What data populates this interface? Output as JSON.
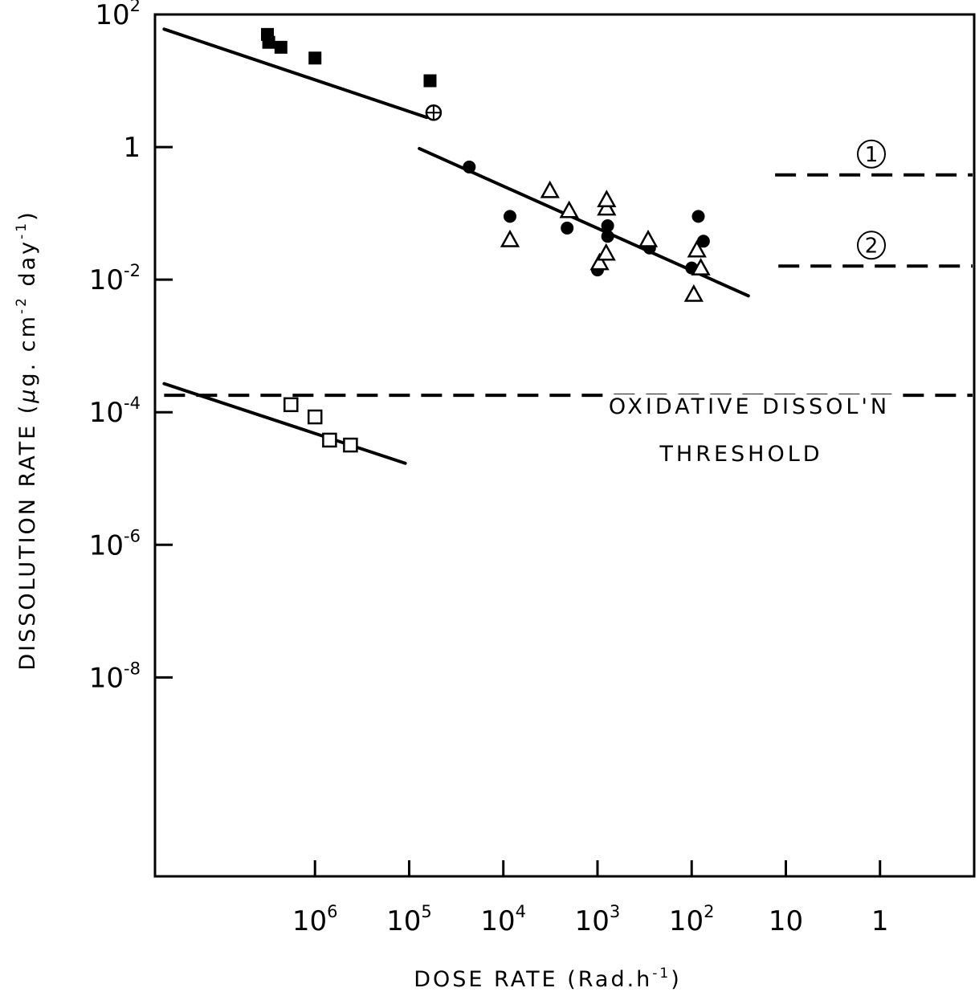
{
  "chart_data": {
    "type": "scatter",
    "title": "",
    "xlabel": {
      "prefix": "DOSE RATE (Rad.h",
      "sup": "-1",
      "suffix": ")"
    },
    "ylabel": {
      "a": "DISSOLUTION RATE (",
      "mu": "μ",
      "b": "g. cm",
      "sup1": "-2",
      "c": " day",
      "sup2": "-1",
      "d": ")"
    },
    "x_reversed": true,
    "x_scale": "log",
    "y_scale": "log",
    "xlim": [
      50000000,
      0.1
    ],
    "ylim": [
      1e-11,
      100
    ],
    "x_ticks": [
      {
        "value": 1000000,
        "base": "10",
        "exp": "6"
      },
      {
        "value": 100000,
        "base": "10",
        "exp": "5"
      },
      {
        "value": 10000,
        "base": "10",
        "exp": "4"
      },
      {
        "value": 1000,
        "base": "10",
        "exp": "3"
      },
      {
        "value": 100,
        "base": "10",
        "exp": "2"
      },
      {
        "value": 10,
        "base": "10",
        "exp": ""
      },
      {
        "value": 1,
        "base": "1",
        "exp": ""
      }
    ],
    "y_ticks": [
      {
        "value": 100,
        "base": "10",
        "exp": "2"
      },
      {
        "value": 1,
        "base": "1",
        "exp": ""
      },
      {
        "value": 0.01,
        "base": "10",
        "exp": "-2"
      },
      {
        "value": 0.0001,
        "base": "10",
        "exp": "-4"
      },
      {
        "value": 1e-06,
        "base": "10",
        "exp": "-6"
      },
      {
        "value": 1e-08,
        "base": "10",
        "exp": "-8"
      }
    ],
    "series": [
      {
        "marker": "filled-square",
        "points": [
          [
            3200000,
            50
          ],
          [
            3100000,
            38
          ],
          [
            2300000,
            32
          ],
          [
            1000000,
            22
          ],
          [
            60000,
            10
          ]
        ]
      },
      {
        "marker": "circled-plus",
        "points": [
          [
            55000,
            3.3
          ]
        ]
      },
      {
        "marker": "filled-circle",
        "points": [
          [
            23000,
            0.5
          ],
          [
            8500,
            0.09
          ],
          [
            2100,
            0.06
          ],
          [
            1000,
            0.014
          ],
          [
            780,
            0.045
          ],
          [
            780,
            0.065
          ],
          [
            280,
            0.03
          ],
          [
            100,
            0.015
          ],
          [
            85,
            0.09
          ],
          [
            75,
            0.038
          ]
        ]
      },
      {
        "marker": "open-triangle",
        "points": [
          [
            8500,
            0.04
          ],
          [
            3200,
            0.22
          ],
          [
            2000,
            0.11
          ],
          [
            950,
            0.018
          ],
          [
            810,
            0.025
          ],
          [
            800,
            0.12
          ],
          [
            800,
            0.16
          ],
          [
            290,
            0.04
          ],
          [
            95,
            0.006
          ],
          [
            88,
            0.028
          ],
          [
            80,
            0.015
          ]
        ]
      },
      {
        "marker": "open-square",
        "points": [
          [
            1800000,
            0.00013
          ],
          [
            1000000,
            8.5e-05
          ],
          [
            700000,
            3.8e-05
          ],
          [
            420000,
            3.2e-05
          ]
        ]
      }
    ],
    "fit_lines": [
      {
        "points": [
          [
            40000000,
            60
          ],
          [
            65000,
            2.8
          ]
        ]
      },
      {
        "points": [
          [
            78000,
            0.95
          ],
          [
            25,
            0.0057
          ]
        ]
      },
      {
        "points": [
          [
            40000000,
            0.00027
          ],
          [
            110000,
            1.7e-05
          ]
        ]
      }
    ],
    "reference_lines": [
      {
        "label": "1",
        "y": 0.38,
        "x_range": [
          13,
          0.1
        ]
      },
      {
        "label": "2",
        "y": 0.016,
        "x_range": [
          12,
          0.1
        ]
      },
      {
        "label": "",
        "y": 0.00018,
        "x_range": [
          40000000,
          0.1
        ]
      }
    ],
    "annotations": [
      "OXIDATIVE DISSOL'N",
      "THRESHOLD"
    ]
  }
}
